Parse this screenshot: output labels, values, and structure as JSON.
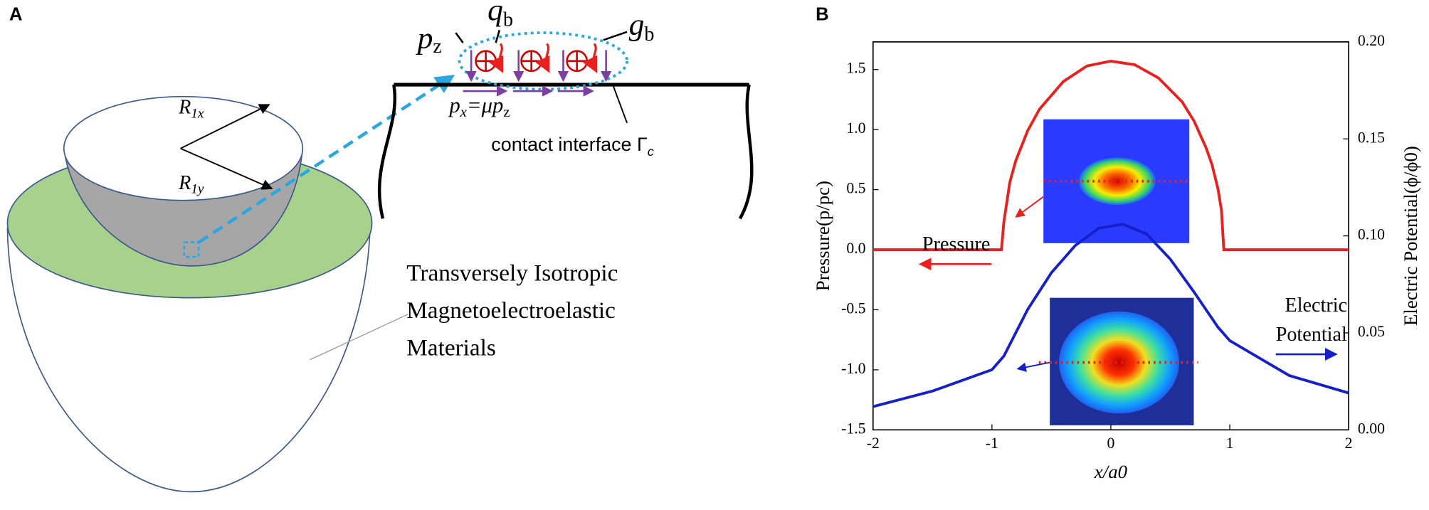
{
  "panel_a": {
    "label": "A",
    "r1x": {
      "symbol": "R",
      "sub": "1x"
    },
    "r1y": {
      "symbol": "R",
      "sub": "1y"
    },
    "qb": {
      "symbol": "q",
      "sub": "b"
    },
    "gb": {
      "symbol": "g",
      "sub": "b"
    },
    "pz": {
      "symbol": "p",
      "sub": "z"
    },
    "px": {
      "symbol": "p",
      "sub": "x",
      "rest": "=μp",
      "rest_sub": "z"
    },
    "interface": {
      "text": "contact interface Γ",
      "sub": "c"
    },
    "material": [
      "Transversely Isotropic",
      "Magnetoelectroelastic",
      "Materials"
    ]
  },
  "chart_data": {
    "type": "line",
    "label": "B",
    "x_label": "x/a0",
    "y_label": "Pressure(p/pc)",
    "y2_label": "Electric Potential(ϕ/ϕ0)",
    "annotations": [
      "Pressure",
      "Electric",
      "Potential"
    ],
    "xlim": [
      -2,
      2
    ],
    "xticks": [
      -2,
      -1,
      0,
      1,
      2
    ],
    "ylim": [
      -1.5,
      1.73
    ],
    "yticks": [
      {
        "value": 1.5,
        "label": "1.5"
      },
      {
        "value": 1,
        "label": "1.0"
      },
      {
        "value": 0.5,
        "label": "0.5"
      },
      {
        "value": 0,
        "label": "0.0"
      },
      {
        "value": -0.5,
        "label": "-0.5"
      },
      {
        "value": -1,
        "label": "-1.0"
      },
      {
        "value": -1.5,
        "label": "-1.5"
      }
    ],
    "y2lim": [
      0,
      0.2
    ],
    "y2ticks": [
      {
        "value": 0.2,
        "label": "0.20"
      },
      {
        "value": 0.15,
        "label": "0.15"
      },
      {
        "value": 0.1,
        "label": "0.10"
      },
      {
        "value": 0.05,
        "label": "0.05"
      },
      {
        "value": 0,
        "label": "0.00"
      }
    ],
    "series": [
      {
        "name": "Pressure",
        "color": "#e8201e",
        "x": [
          -2,
          -0.92,
          -0.9,
          -0.85,
          -0.8,
          -0.7,
          -0.6,
          -0.4,
          -0.2,
          0,
          0.2,
          0.4,
          0.6,
          0.7,
          0.8,
          0.85,
          0.9,
          0.93,
          0.95,
          2
        ],
        "values": [
          0,
          0,
          0.23,
          0.56,
          0.74,
          0.99,
          1.17,
          1.4,
          1.53,
          1.57,
          1.54,
          1.43,
          1.23,
          1.07,
          0.85,
          0.71,
          0.51,
          0.33,
          0,
          0
        ]
      },
      {
        "name": "Electric Potential",
        "color": "#1520c8",
        "axis": "y2",
        "x": [
          -2,
          -1.5,
          -1,
          -0.9,
          -0.7,
          -0.5,
          -0.3,
          -0.1,
          0.1,
          0.3,
          0.5,
          0.7,
          0.9,
          1,
          1.5,
          2
        ],
        "values": [
          0.012,
          0.02,
          0.031,
          0.038,
          0.062,
          0.081,
          0.095,
          0.104,
          0.106,
          0.101,
          0.088,
          0.071,
          0.053,
          0.046,
          0.028,
          0.019
        ]
      }
    ]
  }
}
